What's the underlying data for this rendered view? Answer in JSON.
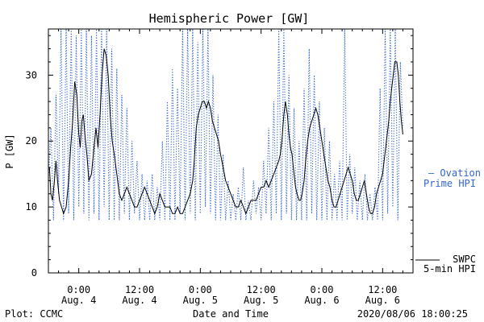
{
  "chart_data": {
    "type": "line",
    "title": "Hemispheric Power [GW]",
    "ylabel": "P [GW]",
    "xlabel": "Date and Time",
    "ylim": [
      0,
      37
    ],
    "xlim_hours": [
      -6,
      66
    ],
    "yticks": [
      0,
      10,
      20,
      30
    ],
    "xticks": [
      {
        "hour": 0,
        "time": "0:00",
        "day": "Aug. 4"
      },
      {
        "hour": 12,
        "time": "12:00",
        "day": "Aug. 4"
      },
      {
        "hour": 24,
        "time": "0:00",
        "day": "Aug. 5"
      },
      {
        "hour": 36,
        "time": "12:00",
        "day": "Aug. 5"
      },
      {
        "hour": 48,
        "time": "0:00",
        "day": "Aug. 6"
      },
      {
        "hour": 60,
        "time": "12:00",
        "day": "Aug. 6"
      }
    ],
    "series": [
      {
        "name": "SWPC 5-min HPI",
        "color": "#000000",
        "style": "solid",
        "points": [
          [
            -5.8,
            16
          ],
          [
            -5.5,
            12
          ],
          [
            -5.2,
            11
          ],
          [
            -4.8,
            14
          ],
          [
            -4.5,
            17
          ],
          [
            -4.2,
            14
          ],
          [
            -3.8,
            11
          ],
          [
            -3.4,
            10
          ],
          [
            -3.0,
            9
          ],
          [
            -2.5,
            10
          ],
          [
            -2.0,
            14
          ],
          [
            -1.6,
            19
          ],
          [
            -1.2,
            23
          ],
          [
            -0.8,
            29
          ],
          [
            -0.4,
            27
          ],
          [
            0.0,
            21
          ],
          [
            0.3,
            19
          ],
          [
            0.6,
            23
          ],
          [
            0.9,
            24
          ],
          [
            1.2,
            21
          ],
          [
            1.6,
            18
          ],
          [
            2.0,
            14
          ],
          [
            2.5,
            15
          ],
          [
            3.0,
            19
          ],
          [
            3.4,
            22
          ],
          [
            3.8,
            19
          ],
          [
            4.2,
            24
          ],
          [
            4.6,
            30
          ],
          [
            5.0,
            34
          ],
          [
            5.4,
            33
          ],
          [
            5.8,
            30
          ],
          [
            6.2,
            24
          ],
          [
            6.6,
            20
          ],
          [
            7.0,
            18
          ],
          [
            7.5,
            15
          ],
          [
            8.0,
            12
          ],
          [
            8.5,
            11
          ],
          [
            9.0,
            12
          ],
          [
            9.5,
            13
          ],
          [
            10.0,
            12
          ],
          [
            10.5,
            11
          ],
          [
            11.0,
            10
          ],
          [
            11.5,
            10
          ],
          [
            12.0,
            11
          ],
          [
            12.5,
            12
          ],
          [
            13.0,
            13
          ],
          [
            13.5,
            12
          ],
          [
            14.0,
            11
          ],
          [
            14.5,
            10
          ],
          [
            15.0,
            9
          ],
          [
            15.5,
            10
          ],
          [
            16.0,
            12
          ],
          [
            16.5,
            11
          ],
          [
            17.0,
            10
          ],
          [
            17.5,
            10
          ],
          [
            18.0,
            10
          ],
          [
            18.5,
            9
          ],
          [
            19.0,
            9
          ],
          [
            19.5,
            10
          ],
          [
            20.0,
            9
          ],
          [
            20.5,
            9
          ],
          [
            21.0,
            10
          ],
          [
            21.5,
            11
          ],
          [
            22.0,
            12
          ],
          [
            22.5,
            14
          ],
          [
            22.8,
            17
          ],
          [
            23.2,
            22
          ],
          [
            23.6,
            24
          ],
          [
            24.0,
            25
          ],
          [
            24.4,
            26
          ],
          [
            24.8,
            26
          ],
          [
            25.2,
            25
          ],
          [
            25.6,
            26
          ],
          [
            26.0,
            25
          ],
          [
            26.4,
            23
          ],
          [
            26.8,
            22
          ],
          [
            27.2,
            21
          ],
          [
            27.6,
            20
          ],
          [
            28.0,
            18
          ],
          [
            28.5,
            16
          ],
          [
            29.0,
            14
          ],
          [
            29.5,
            13
          ],
          [
            30.0,
            12
          ],
          [
            30.5,
            11
          ],
          [
            31.0,
            10
          ],
          [
            31.5,
            10
          ],
          [
            32.0,
            11
          ],
          [
            32.5,
            10
          ],
          [
            33.0,
            9
          ],
          [
            33.5,
            10
          ],
          [
            34.0,
            11
          ],
          [
            34.5,
            11
          ],
          [
            35.0,
            11
          ],
          [
            35.5,
            12
          ],
          [
            36.0,
            13
          ],
          [
            36.5,
            13
          ],
          [
            37.0,
            14
          ],
          [
            37.5,
            13
          ],
          [
            38.0,
            14
          ],
          [
            38.5,
            15
          ],
          [
            39.0,
            16
          ],
          [
            39.5,
            17
          ],
          [
            39.8,
            18
          ],
          [
            40.1,
            20
          ],
          [
            40.5,
            24
          ],
          [
            40.8,
            26
          ],
          [
            41.2,
            24
          ],
          [
            41.5,
            21
          ],
          [
            41.8,
            19
          ],
          [
            42.1,
            18
          ],
          [
            42.5,
            15
          ],
          [
            42.8,
            13
          ],
          [
            43.1,
            12
          ],
          [
            43.5,
            11
          ],
          [
            43.8,
            11
          ],
          [
            44.1,
            12
          ],
          [
            44.5,
            14
          ],
          [
            44.8,
            17
          ],
          [
            45.2,
            20
          ],
          [
            45.6,
            22
          ],
          [
            46.0,
            23
          ],
          [
            46.4,
            24
          ],
          [
            46.8,
            25
          ],
          [
            47.2,
            24
          ],
          [
            47.6,
            22
          ],
          [
            48.0,
            20
          ],
          [
            48.4,
            18
          ],
          [
            48.8,
            16
          ],
          [
            49.2,
            14
          ],
          [
            49.6,
            13
          ],
          [
            50.0,
            11
          ],
          [
            50.4,
            10
          ],
          [
            50.8,
            10
          ],
          [
            51.2,
            11
          ],
          [
            51.6,
            12
          ],
          [
            52.0,
            13
          ],
          [
            52.4,
            14
          ],
          [
            52.8,
            15
          ],
          [
            53.2,
            16
          ],
          [
            53.6,
            15
          ],
          [
            54.0,
            14
          ],
          [
            54.4,
            12
          ],
          [
            54.8,
            11
          ],
          [
            55.2,
            11
          ],
          [
            55.6,
            12
          ],
          [
            56.0,
            13
          ],
          [
            56.4,
            14
          ],
          [
            56.8,
            12
          ],
          [
            57.2,
            10
          ],
          [
            57.6,
            9
          ],
          [
            58.0,
            9
          ],
          [
            58.4,
            10
          ],
          [
            58.8,
            12
          ],
          [
            59.2,
            13
          ],
          [
            59.6,
            14
          ],
          [
            60.0,
            15
          ],
          [
            60.3,
            17
          ],
          [
            60.6,
            19
          ],
          [
            60.9,
            21
          ],
          [
            61.2,
            23
          ],
          [
            61.5,
            26
          ],
          [
            61.8,
            28
          ],
          [
            62.1,
            30
          ],
          [
            62.4,
            32
          ],
          [
            62.8,
            32
          ],
          [
            63.1,
            30
          ],
          [
            63.4,
            26
          ],
          [
            63.7,
            23
          ],
          [
            64.0,
            21
          ]
        ]
      },
      {
        "name": "Ovation Prime HPI",
        "color": "#3366cc",
        "style": "dotted",
        "points": [
          [
            -6.0,
            14
          ],
          [
            -5.5,
            22
          ],
          [
            -5.0,
            8
          ],
          [
            -4.5,
            27
          ],
          [
            -4.0,
            12
          ],
          [
            -3.5,
            37
          ],
          [
            -3.0,
            8
          ],
          [
            -2.5,
            37
          ],
          [
            -2.0,
            9
          ],
          [
            -1.5,
            37
          ],
          [
            -1.0,
            8
          ],
          [
            -0.5,
            36
          ],
          [
            0.0,
            10
          ],
          [
            0.5,
            37
          ],
          [
            1.0,
            9
          ],
          [
            1.5,
            37
          ],
          [
            2.0,
            8
          ],
          [
            2.5,
            36
          ],
          [
            3.0,
            9
          ],
          [
            3.5,
            37
          ],
          [
            4.0,
            8
          ],
          [
            4.5,
            37
          ],
          [
            5.0,
            10
          ],
          [
            5.5,
            37
          ],
          [
            6.0,
            8
          ],
          [
            6.5,
            34
          ],
          [
            7.0,
            8
          ],
          [
            7.5,
            31
          ],
          [
            8.0,
            8
          ],
          [
            8.5,
            27
          ],
          [
            9.0,
            9
          ],
          [
            9.5,
            25
          ],
          [
            10.0,
            8
          ],
          [
            10.5,
            20
          ],
          [
            11.0,
            9
          ],
          [
            11.5,
            17
          ],
          [
            12.0,
            8
          ],
          [
            12.5,
            15
          ],
          [
            13.0,
            8
          ],
          [
            13.5,
            14
          ],
          [
            14.0,
            8
          ],
          [
            14.5,
            15
          ],
          [
            15.0,
            8
          ],
          [
            15.5,
            13
          ],
          [
            16.0,
            8
          ],
          [
            16.5,
            20
          ],
          [
            17.0,
            8
          ],
          [
            17.5,
            26
          ],
          [
            18.0,
            8
          ],
          [
            18.5,
            31
          ],
          [
            19.0,
            8
          ],
          [
            19.5,
            28
          ],
          [
            20.0,
            9
          ],
          [
            20.5,
            37
          ],
          [
            21.0,
            8
          ],
          [
            21.5,
            37
          ],
          [
            22.0,
            9
          ],
          [
            22.5,
            37
          ],
          [
            23.0,
            8
          ],
          [
            23.5,
            35
          ],
          [
            24.0,
            9
          ],
          [
            24.5,
            37
          ],
          [
            25.0,
            10
          ],
          [
            25.5,
            37
          ],
          [
            26.0,
            9
          ],
          [
            26.5,
            30
          ],
          [
            27.0,
            8
          ],
          [
            27.5,
            24
          ],
          [
            28.0,
            8
          ],
          [
            28.5,
            18
          ],
          [
            29.0,
            8
          ],
          [
            29.5,
            14
          ],
          [
            30.0,
            8
          ],
          [
            30.5,
            12
          ],
          [
            31.0,
            8
          ],
          [
            31.5,
            13
          ],
          [
            32.0,
            8
          ],
          [
            32.5,
            16
          ],
          [
            33.0,
            8
          ],
          [
            33.5,
            11
          ],
          [
            34.0,
            8
          ],
          [
            34.5,
            14
          ],
          [
            35.0,
            9
          ],
          [
            35.5,
            13
          ],
          [
            36.0,
            8
          ],
          [
            36.5,
            17
          ],
          [
            37.0,
            9
          ],
          [
            37.5,
            22
          ],
          [
            38.0,
            8
          ],
          [
            38.5,
            26
          ],
          [
            39.0,
            9
          ],
          [
            39.5,
            37
          ],
          [
            40.0,
            8
          ],
          [
            40.5,
            37
          ],
          [
            41.0,
            9
          ],
          [
            41.5,
            30
          ],
          [
            42.0,
            8
          ],
          [
            42.5,
            25
          ],
          [
            43.0,
            8
          ],
          [
            43.5,
            20
          ],
          [
            44.0,
            8
          ],
          [
            44.5,
            28
          ],
          [
            45.0,
            8
          ],
          [
            45.5,
            34
          ],
          [
            46.0,
            9
          ],
          [
            46.5,
            30
          ],
          [
            47.0,
            8
          ],
          [
            47.5,
            26
          ],
          [
            48.0,
            8
          ],
          [
            48.5,
            22
          ],
          [
            49.0,
            8
          ],
          [
            49.5,
            20
          ],
          [
            50.0,
            8
          ],
          [
            50.5,
            15
          ],
          [
            51.0,
            8
          ],
          [
            51.5,
            17
          ],
          [
            52.0,
            8
          ],
          [
            52.5,
            37
          ],
          [
            53.0,
            8
          ],
          [
            53.5,
            18
          ],
          [
            54.0,
            9
          ],
          [
            54.5,
            16
          ],
          [
            55.0,
            8
          ],
          [
            55.5,
            14
          ],
          [
            56.0,
            8
          ],
          [
            56.5,
            15
          ],
          [
            57.0,
            8
          ],
          [
            57.5,
            12
          ],
          [
            58.0,
            8
          ],
          [
            58.5,
            13
          ],
          [
            59.0,
            8
          ],
          [
            59.5,
            28
          ],
          [
            60.0,
            8
          ],
          [
            60.5,
            37
          ],
          [
            61.0,
            9
          ],
          [
            61.5,
            37
          ],
          [
            62.0,
            10
          ],
          [
            62.5,
            37
          ],
          [
            63.0,
            8
          ],
          [
            63.5,
            32
          ],
          [
            64.0,
            22
          ]
        ]
      }
    ],
    "legend": {
      "ovation": {
        "line1": "— Ovation",
        "line2": "Prime HPI"
      },
      "swpc": {
        "line1": "SWPC",
        "line2": "5-min HPI"
      }
    },
    "footer": {
      "left": "Plot: CCMC",
      "right": "2020/08/06 18:00:25"
    }
  }
}
